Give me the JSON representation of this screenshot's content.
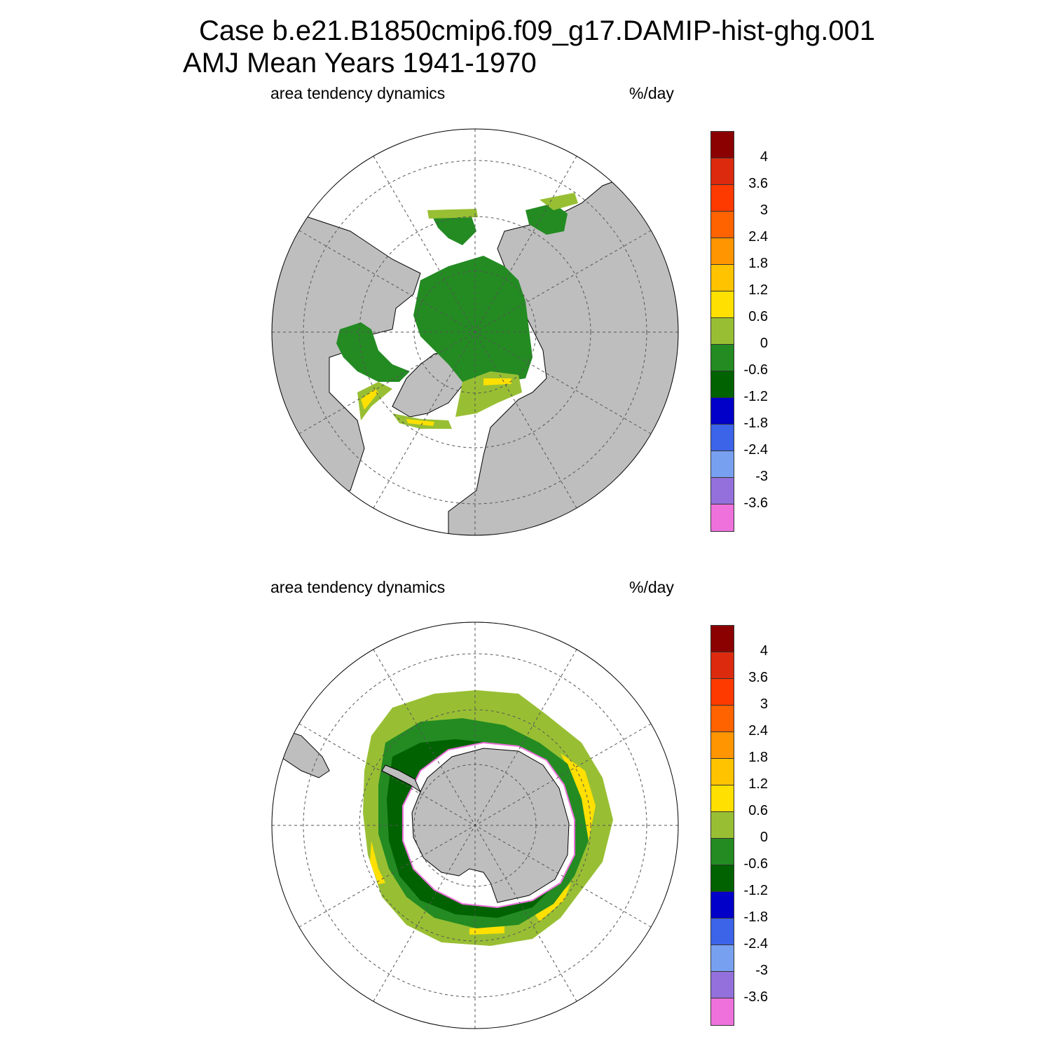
{
  "title": {
    "line1": "Case b.e21.B1850cmip6.f09_g17.DAMIP-hist-ghg.001",
    "line2": "AMJ Mean   Years 1941-1970"
  },
  "panels": [
    {
      "id": "north",
      "left_label": "area tendency dynamics",
      "right_label": "%/day",
      "hemisphere": "Arctic (North Polar Stereographic)"
    },
    {
      "id": "south",
      "left_label": "area tendency dynamics",
      "right_label": "%/day",
      "hemisphere": "Antarctic (South Polar Stereographic)"
    }
  ],
  "colorbar": {
    "unit": "%/day",
    "colors": [
      "#8b0000",
      "#dc2a0e",
      "#ff3a00",
      "#ff6300",
      "#ff9500",
      "#ffc300",
      "#ffe000",
      "#98bf33",
      "#238b22",
      "#006200",
      "#0000c8",
      "#3c64e8",
      "#78a0f0",
      "#9370db",
      "#ee71dc"
    ],
    "labels": [
      "4",
      "3.6",
      "3",
      "2.4",
      "1.8",
      "1.2",
      "0.6",
      "0",
      "-0.6",
      "-1.2",
      "-1.8",
      "-2.4",
      "-3",
      "-3.6"
    ]
  },
  "map_colors": {
    "land": "#bebebe",
    "no_data": "#ffffff",
    "grid": "#555555"
  }
}
